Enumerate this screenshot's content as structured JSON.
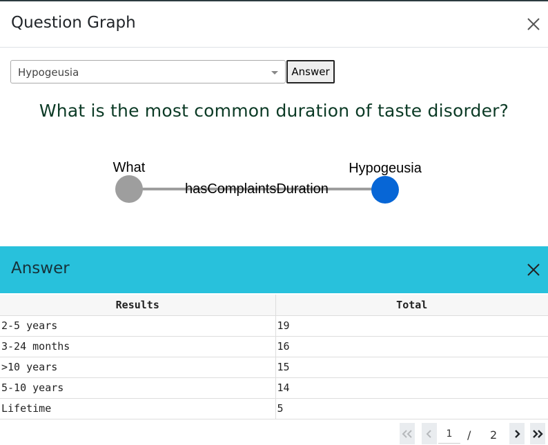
{
  "modal": {
    "title": "Question Graph"
  },
  "controls": {
    "selected_option": "Hypogeusia",
    "answer_button": "Answer"
  },
  "question": "What is the most common duration of taste disorder?",
  "graph": {
    "source_label": "What",
    "target_label": "Hypogeusia",
    "edge_label": "hasComplaintsDuration",
    "source_color": "#9e9e9e",
    "target_color": "#0766d6",
    "edge_color": "#9e9e9e"
  },
  "answer_panel": {
    "title": "Answer",
    "header_color": "#28c1dc"
  },
  "table": {
    "columns": [
      "Results",
      "Total"
    ],
    "rows": [
      [
        "2-5 years",
        "19"
      ],
      [
        "3-24 months",
        "16"
      ],
      [
        ">10 years",
        "15"
      ],
      [
        "5-10 years",
        "14"
      ],
      [
        "Lifetime",
        "5"
      ]
    ]
  },
  "pagination": {
    "current_page": "1",
    "separator": "/",
    "total_pages": "2"
  }
}
